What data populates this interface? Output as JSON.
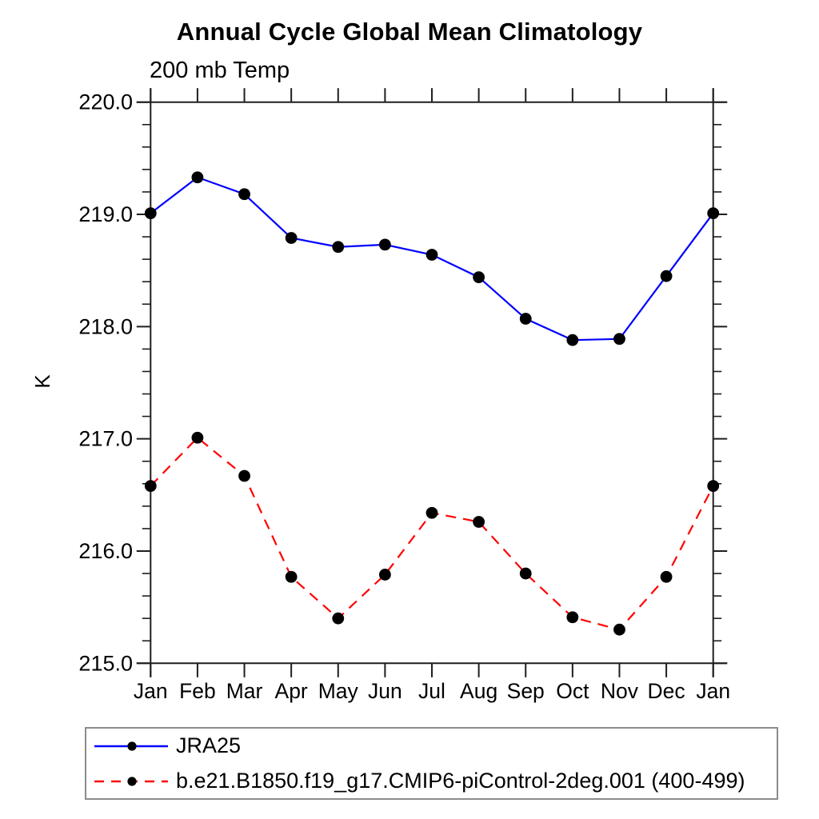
{
  "chart_data": {
    "type": "line",
    "title": "Annual Cycle Global Mean Climatology",
    "subtitle": "200 mb Temp",
    "xlabel": "",
    "ylabel": "K",
    "ylim": [
      215.0,
      220.0
    ],
    "y_major_step": 1.0,
    "y_minor_step": 0.2,
    "y_tick_labels": [
      "220.0",
      "219.0",
      "218.0",
      "217.0",
      "216.0",
      "215.0"
    ],
    "categories": [
      "Jan",
      "Feb",
      "Mar",
      "Apr",
      "May",
      "Jun",
      "Jul",
      "Aug",
      "Sep",
      "Oct",
      "Nov",
      "Dec",
      "Jan"
    ],
    "grid": false,
    "legend_position": "below-plot",
    "axis_color": "#1e1e1e",
    "marker_color": "#000000",
    "series": [
      {
        "name": "JRA25",
        "color": "#0000ff",
        "line_style": "solid",
        "marker": "filled-circle",
        "values": [
          219.01,
          219.33,
          219.18,
          218.79,
          218.71,
          218.73,
          218.64,
          218.44,
          218.07,
          217.88,
          217.89,
          218.45,
          219.01
        ]
      },
      {
        "name": "b.e21.B1850.f19_g17.CMIP6-piControl-2deg.001 (400-499)",
        "color": "#ff0000",
        "line_style": "dashed",
        "marker": "filled-circle",
        "values": [
          216.58,
          217.01,
          216.67,
          215.77,
          215.4,
          215.79,
          216.34,
          216.26,
          215.8,
          215.41,
          215.3,
          215.77,
          216.58
        ]
      }
    ]
  }
}
